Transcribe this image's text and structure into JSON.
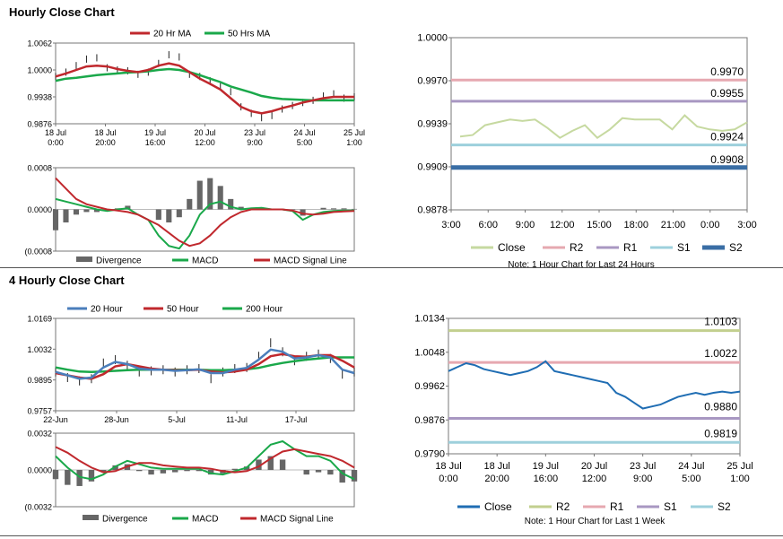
{
  "sections": {
    "hourly_title": "Hourly Close Chart",
    "four_hourly_title": "4 Hourly Close Chart"
  },
  "colors": {
    "close_light": "#c6d9a0",
    "r2_pink": "#e6a8b0",
    "r1_purple": "#a897c2",
    "s1_cyan": "#9dd0dc",
    "s2_blue": "#3a6ea5",
    "ma_red": "#c0282d",
    "ma_green": "#1aa84a",
    "ma_blue": "#4a7ebb",
    "close_blue": "#1f6db3",
    "r2_olive": "#c2cf8e",
    "divergence": "#666666"
  },
  "chart_data": [
    {
      "id": "hourly_price",
      "type": "line",
      "title": "Hourly Close Chart",
      "yticks": [
        "1.0062",
        "1.0000",
        "0.9938",
        "0.9876"
      ],
      "ylim": [
        0.9876,
        1.0062
      ],
      "xticks": [
        [
          "18 Jul",
          "0:00"
        ],
        [
          "18 Jul",
          "20:00"
        ],
        [
          "19 Jul",
          "16:00"
        ],
        [
          "20 Jul",
          "12:00"
        ],
        [
          "23 Jul",
          "9:00"
        ],
        [
          "24 Jul",
          "5:00"
        ],
        [
          "25 Jul",
          "1:00"
        ]
      ],
      "legend": [
        "20 Hr MA",
        "50 Hrs MA"
      ],
      "series": [
        {
          "name": "Price",
          "values": [
            0.9985,
            0.9995,
            1.001,
            1.0025,
            1.0028,
            1.0005,
            1.0,
            0.9998,
            0.999,
            0.9995,
            1.0015,
            1.0035,
            1.003,
            0.999,
            0.9985,
            0.9975,
            0.9965,
            0.995,
            0.9915,
            0.99,
            0.989,
            0.9895,
            0.991,
            0.9918,
            0.9925,
            0.993,
            0.994,
            0.9945,
            0.9935,
            0.9938
          ]
        },
        {
          "name": "20 Hr MA",
          "values": [
            0.9985,
            0.9992,
            1.0,
            1.0008,
            1.001,
            1.0008,
            1.0002,
            0.9998,
            0.9995,
            1.0,
            1.001,
            1.0015,
            1.001,
            0.9995,
            0.998,
            0.9968,
            0.9955,
            0.9935,
            0.9915,
            0.9905,
            0.99,
            0.9905,
            0.9912,
            0.9918,
            0.9925,
            0.993,
            0.9935,
            0.9938,
            0.9938,
            0.9938
          ]
        },
        {
          "name": "50 Hrs MA",
          "values": [
            0.9975,
            0.998,
            0.9982,
            0.9985,
            0.9988,
            0.999,
            0.9992,
            0.9994,
            0.9995,
            0.9997,
            1.0,
            1.0002,
            1.0,
            0.9995,
            0.9988,
            0.998,
            0.9972,
            0.9962,
            0.9955,
            0.9948,
            0.994,
            0.9936,
            0.9933,
            0.9932,
            0.9931,
            0.993,
            0.993,
            0.993,
            0.993,
            0.993
          ]
        }
      ]
    },
    {
      "id": "hourly_macd",
      "type": "line",
      "yticks": [
        "0.0008",
        "0.0000",
        "(0.0008"
      ],
      "ylim": [
        -0.0008,
        0.0008
      ],
      "legend": [
        "Divergence",
        "MACD",
        "MACD Signal Line"
      ],
      "series": [
        {
          "name": "MACD",
          "values": [
            0.0002,
            0.00015,
            0.0001,
            5e-05,
            0.0,
            -3e-05,
            0.0,
            2e-05,
            -0.0001,
            -0.0002,
            -0.0005,
            -0.0007,
            -0.00075,
            -0.0005,
            -0.0001,
            0.0001,
            0.00015,
            5e-05,
            0.0,
            2e-05,
            3e-05,
            0.0,
            0.0,
            -3e-05,
            -0.0002,
            -0.0001,
            -5e-05,
            -3e-05,
            -2e-05,
            -2e-05
          ]
        },
        {
          "name": "MACD Signal Line",
          "values": [
            0.0006,
            0.0004,
            0.0002,
            0.0001,
            5e-05,
            0.0,
            -2e-05,
            -5e-05,
            -0.0001,
            -0.0002,
            -0.0003,
            -0.00045,
            -0.0006,
            -0.0007,
            -0.00065,
            -0.0005,
            -0.0003,
            -0.00015,
            -5e-05,
            0.0,
            0.0,
            0.0,
            0.0,
            -2e-05,
            -8e-05,
            -0.0001,
            -8e-05,
            -5e-05,
            -4e-05,
            -3e-05
          ]
        },
        {
          "name": "Divergence",
          "values": [
            -0.0004,
            -0.00025,
            -0.0001,
            -5e-05,
            -5e-05,
            -3e-05,
            2e-05,
            7e-05,
            0.0,
            0.0,
            -0.0002,
            -0.00025,
            -0.00015,
            0.0002,
            0.00055,
            0.0006,
            0.00045,
            0.0002,
            5e-05,
            2e-05,
            3e-05,
            0.0,
            0.0,
            -1e-05,
            -0.00012,
            0.0,
            3e-05,
            2e-05,
            2e-05,
            1e-05
          ]
        }
      ]
    },
    {
      "id": "hourly_levels",
      "type": "line",
      "yticks": [
        "1.0000",
        "0.9970",
        "0.9939",
        "0.9909",
        "0.9878"
      ],
      "ylim": [
        0.9878,
        1.0
      ],
      "xticks": [
        "3:00",
        "6:00",
        "9:00",
        "12:00",
        "15:00",
        "18:00",
        "21:00",
        "0:00",
        "3:00"
      ],
      "legend": [
        "Close",
        "R2",
        "R1",
        "S1",
        "S2"
      ],
      "note": "Note: 1 Hour Chart for Last 24 Hours",
      "levels": [
        {
          "name": "R2",
          "value": 0.997,
          "label": "0.9970"
        },
        {
          "name": "R1",
          "value": 0.9955,
          "label": "0.9955"
        },
        {
          "name": "S1",
          "value": 0.9924,
          "label": "0.9924"
        },
        {
          "name": "S2",
          "value": 0.9908,
          "label": "0.9908"
        }
      ],
      "series": [
        {
          "name": "Close",
          "values": [
            0.993,
            0.9931,
            0.9938,
            0.994,
            0.9942,
            0.9941,
            0.9942,
            0.9936,
            0.9929,
            0.9934,
            0.9938,
            0.9929,
            0.9935,
            0.9943,
            0.9942,
            0.9942,
            0.9942,
            0.9935,
            0.9945,
            0.9937,
            0.9935,
            0.9934,
            0.9935,
            0.994
          ]
        }
      ]
    },
    {
      "id": "four_hourly_price",
      "type": "line",
      "title": "4 Hourly Close Chart",
      "yticks": [
        "1.0169",
        "1.0032",
        "0.9895",
        "0.9757"
      ],
      "ylim": [
        0.9757,
        1.0169
      ],
      "xticks": [
        "22-Jun",
        "28-Jun",
        "5-Jul",
        "11-Jul",
        "17-Jul"
      ],
      "legend": [
        "20 Hour",
        "50 Hour",
        "200 Hour"
      ],
      "series": [
        {
          "name": "Price",
          "values": [
            0.993,
            0.9905,
            0.989,
            0.99,
            0.997,
            0.9985,
            0.996,
            0.993,
            0.9935,
            0.994,
            0.993,
            0.994,
            0.9945,
            0.99,
            0.993,
            0.9945,
            0.995,
            1.0,
            1.006,
            1.002,
            0.998,
            1.0,
            1.001,
            0.999,
            0.992,
            0.993
          ]
        },
        {
          "name": "20 Hour",
          "values": [
            0.993,
            0.9915,
            0.99,
            0.9905,
            0.995,
            0.9975,
            0.9965,
            0.9945,
            0.994,
            0.994,
            0.9935,
            0.9938,
            0.9942,
            0.9925,
            0.9925,
            0.994,
            0.9948,
            0.9985,
            1.003,
            1.002,
            0.999,
            0.9995,
            1.0005,
            0.9995,
            0.994,
            0.9925
          ]
        },
        {
          "name": "50 Hour",
          "values": [
            0.9925,
            0.9915,
            0.9905,
            0.99,
            0.992,
            0.9955,
            0.9965,
            0.9955,
            0.9945,
            0.994,
            0.9938,
            0.9938,
            0.994,
            0.9932,
            0.9928,
            0.9932,
            0.994,
            0.9965,
            1.0,
            1.001,
            1.0,
            0.9998,
            1.0005,
            1.0005,
            0.998,
            0.995
          ]
        },
        {
          "name": "200 Hour",
          "values": [
            0.995,
            0.994,
            0.9932,
            0.993,
            0.9932,
            0.9935,
            0.9938,
            0.994,
            0.994,
            0.994,
            0.994,
            0.994,
            0.994,
            0.9938,
            0.9938,
            0.994,
            0.9942,
            0.9948,
            0.996,
            0.997,
            0.9978,
            0.9985,
            0.999,
            0.9995,
            0.9995,
            0.9995
          ]
        }
      ]
    },
    {
      "id": "four_hourly_macd",
      "type": "line",
      "yticks": [
        "0.0032",
        "0.0000",
        "(0.0032"
      ],
      "ylim": [
        -0.0032,
        0.0032
      ],
      "legend": [
        "Divergence",
        "MACD",
        "MACD Signal Line"
      ],
      "series": [
        {
          "name": "MACD",
          "values": [
            0.0012,
            0.0002,
            -0.0006,
            -0.0008,
            -0.0004,
            0.0003,
            0.0008,
            0.0005,
            0.0002,
            0.0001,
            0.0001,
            0.0001,
            0.0001,
            -0.0003,
            -0.0004,
            -0.0001,
            0.0002,
            0.0012,
            0.0022,
            0.0025,
            0.0018,
            0.0012,
            0.0012,
            0.0008,
            -0.0003,
            -0.0008
          ]
        },
        {
          "name": "MACD Signal Line",
          "values": [
            0.002,
            0.0015,
            0.0008,
            0.0002,
            -0.0002,
            -0.0001,
            0.0003,
            0.0006,
            0.0006,
            0.0004,
            0.0003,
            0.0002,
            0.0002,
            0.0001,
            -0.0001,
            -0.0002,
            -0.0001,
            0.0003,
            0.001,
            0.0016,
            0.0018,
            0.0016,
            0.0014,
            0.0012,
            0.0008,
            0.0002
          ]
        },
        {
          "name": "Divergence",
          "values": [
            -0.0008,
            -0.0013,
            -0.0014,
            -0.001,
            -0.0002,
            0.0004,
            0.0005,
            -0.0001,
            -0.0004,
            -0.0003,
            -0.0002,
            -0.0001,
            -0.0001,
            -0.0004,
            -0.0003,
            0.0001,
            0.0003,
            0.0009,
            0.0012,
            0.0009,
            0.0,
            -0.0004,
            -0.0002,
            -0.0004,
            -0.0011,
            -0.001
          ]
        }
      ]
    },
    {
      "id": "four_hourly_levels",
      "type": "line",
      "yticks": [
        "1.0134",
        "1.0048",
        "0.9962",
        "0.9876",
        "0.9790"
      ],
      "ylim": [
        0.979,
        1.0134
      ],
      "xticks": [
        [
          "18 Jul",
          "0:00"
        ],
        [
          "18 Jul",
          "20:00"
        ],
        [
          "19 Jul",
          "16:00"
        ],
        [
          "20 Jul",
          "12:00"
        ],
        [
          "23 Jul",
          "9:00"
        ],
        [
          "24 Jul",
          "5:00"
        ],
        [
          "25 Jul",
          "1:00"
        ]
      ],
      "legend": [
        "Close",
        "R2",
        "R1",
        "S1",
        "S2"
      ],
      "note": "Note: 1 Hour Chart for Last 1 Week",
      "levels": [
        {
          "name": "R2",
          "value": 1.0103,
          "label": "1.0103"
        },
        {
          "name": "R1",
          "value": 1.0022,
          "label": "1.0022"
        },
        {
          "name": "S1",
          "value": 0.988,
          "label": "0.9880"
        },
        {
          "name": "S2",
          "value": 0.9819,
          "label": "0.9819"
        }
      ],
      "series": [
        {
          "name": "Close",
          "values": [
            1.0,
            1.001,
            1.002,
            1.0015,
            1.0005,
            1.0,
            0.9995,
            0.999,
            0.9995,
            1.0,
            1.001,
            1.0025,
            1.0,
            0.9995,
            0.999,
            0.9985,
            0.998,
            0.9975,
            0.997,
            0.9945,
            0.9935,
            0.992,
            0.9905,
            0.991,
            0.9915,
            0.9925,
            0.9935,
            0.994,
            0.9945,
            0.994,
            0.9945,
            0.9948,
            0.9945,
            0.9948
          ]
        }
      ]
    }
  ]
}
